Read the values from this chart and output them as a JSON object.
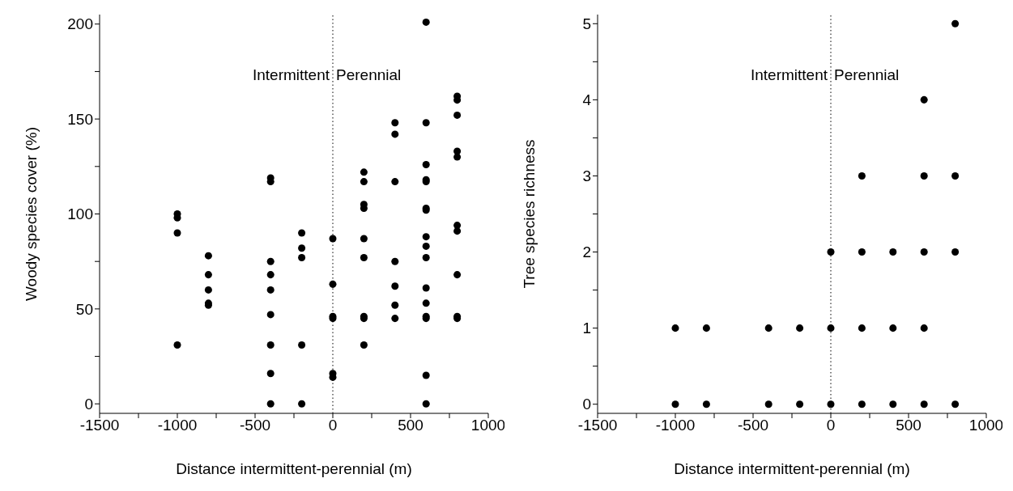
{
  "chart_data": [
    {
      "type": "scatter",
      "xlabel": "Distance intermittent-perennial (m)",
      "ylabel": "Woody species cover (%)",
      "marker": "circle",
      "color": "#000000",
      "x": [
        -1000,
        -1000,
        -1000,
        -1000,
        -800,
        -800,
        -800,
        -800,
        -800,
        -400,
        -400,
        -400,
        -400,
        -400,
        -400,
        -400,
        -400,
        -400,
        -200,
        -200,
        -200,
        -200,
        -200,
        0,
        0,
        0,
        0,
        0,
        0,
        200,
        200,
        200,
        200,
        200,
        200,
        200,
        200,
        200,
        400,
        400,
        400,
        400,
        400,
        400,
        400,
        600,
        600,
        600,
        600,
        600,
        600,
        600,
        600,
        600,
        600,
        600,
        600,
        600,
        600,
        600,
        600,
        800,
        800,
        800,
        800,
        800,
        800,
        800,
        800,
        800,
        800
      ],
      "values": [
        100,
        98,
        90,
        31,
        78,
        68,
        60,
        53,
        52,
        119,
        117,
        75,
        68,
        60,
        47,
        31,
        16,
        0,
        90,
        82,
        77,
        31,
        0,
        87,
        63,
        46,
        45,
        16,
        14,
        122,
        117,
        105,
        103,
        87,
        77,
        46,
        45,
        31,
        148,
        142,
        117,
        75,
        62,
        52,
        45,
        201,
        148,
        126,
        118,
        117,
        103,
        102,
        88,
        83,
        77,
        61,
        53,
        46,
        45,
        15,
        0,
        162,
        160,
        152,
        133,
        130,
        94,
        91,
        68,
        46,
        45
      ],
      "xlim": [
        -1500,
        1000
      ],
      "xticks": [
        -1500,
        {
          "value": -1250,
          "label": null
        },
        -1000,
        {
          "value": -750,
          "label": null
        },
        -500,
        {
          "value": -250,
          "label": null
        },
        0,
        {
          "value": 250,
          "label": null
        },
        500,
        {
          "value": 750,
          "label": null
        },
        1000
      ],
      "ylim": [
        -5,
        205
      ],
      "yticks": [
        0,
        {
          "value": 25,
          "label": null
        },
        50,
        {
          "value": 75,
          "label": null
        },
        100,
        {
          "value": 125,
          "label": null
        },
        150,
        {
          "value": 175,
          "label": null
        },
        200
      ],
      "ref_lines": [
        {
          "axis": "x",
          "value": 0,
          "line_style": "dotted",
          "color": "#000000"
        }
      ],
      "annotations": [
        "Intermittent",
        "Perennial"
      ],
      "grid": false,
      "legend": false
    },
    {
      "type": "scatter",
      "xlabel": "Distance intermittent-perennial (m)",
      "ylabel": "Tree species richness",
      "marker": "circle",
      "color": "#000000",
      "x": [
        -1000,
        -1000,
        -800,
        -800,
        -400,
        -400,
        -200,
        -200,
        0,
        0,
        0,
        200,
        200,
        200,
        200,
        400,
        400,
        400,
        600,
        600,
        600,
        600,
        600,
        800,
        800,
        800,
        800
      ],
      "values": [
        1,
        0,
        1,
        0,
        1,
        0,
        1,
        0,
        2,
        1,
        0,
        3,
        2,
        1,
        0,
        2,
        1,
        0,
        4,
        3,
        2,
        1,
        0,
        5,
        3,
        2,
        0
      ],
      "xlim": [
        -1500,
        1000
      ],
      "xticks": [
        -1500,
        {
          "value": -1250,
          "label": null
        },
        -1000,
        {
          "value": -750,
          "label": null
        },
        -500,
        {
          "value": -250,
          "label": null
        },
        0,
        {
          "value": 250,
          "label": null
        },
        500,
        {
          "value": 750,
          "label": null
        },
        1000
      ],
      "ylim": [
        -0.12,
        5.12
      ],
      "yticks": [
        0,
        {
          "value": 0.5,
          "label": null
        },
        1,
        {
          "value": 1.5,
          "label": null
        },
        2,
        {
          "value": 2.5,
          "label": null
        },
        3,
        {
          "value": 3.5,
          "label": null
        },
        4,
        {
          "value": 4.5,
          "label": null
        },
        5
      ],
      "ref_lines": [
        {
          "axis": "x",
          "value": 0,
          "line_style": "dotted",
          "color": "#000000"
        }
      ],
      "annotations": [
        "Intermittent",
        "Perennial"
      ],
      "grid": false,
      "legend": false
    }
  ]
}
